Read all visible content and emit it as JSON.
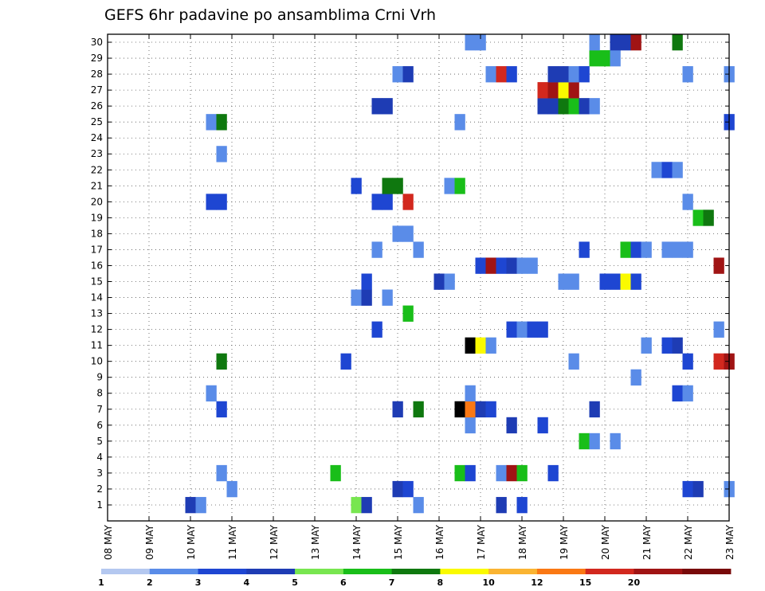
{
  "chart_data": {
    "type": "heatmap",
    "title": "GEFS 6hr padavine po ansamblima Crni Vrh",
    "xlabel": "",
    "ylabel": "",
    "x_tick_labels": [
      "08 MAY",
      "09 MAY",
      "10 MAY",
      "11 MAY",
      "12 MAY",
      "13 MAY",
      "14 MAY",
      "15 MAY",
      "16 MAY",
      "17 MAY",
      "18 MAY",
      "19 MAY",
      "20 MAY",
      "21 MAY",
      "22 MAY",
      "23 MAY"
    ],
    "y_tick_labels": [
      "1",
      "2",
      "3",
      "4",
      "5",
      "6",
      "7",
      "8",
      "9",
      "10",
      "11",
      "12",
      "13",
      "14",
      "15",
      "16",
      "17",
      "18",
      "19",
      "20",
      "21",
      "22",
      "23",
      "24",
      "25",
      "26",
      "27",
      "28",
      "29",
      "30"
    ],
    "x_unit": "6-hour step",
    "grid": "dotted",
    "legend": {
      "placement": "bottom",
      "labels": [
        "1",
        "2",
        "3",
        "4",
        "5",
        "6",
        "7",
        "8",
        "10",
        "12",
        "15",
        "20"
      ],
      "colors": [
        "#b4c8f0",
        "#5a8ce8",
        "#1e46d2",
        "#1e3cb4",
        "#78e650",
        "#19be19",
        "#0f780f",
        "#fafa00",
        "#fab432",
        "#fa7814",
        "#d2281e",
        "#a01414",
        "#780a0a"
      ]
    },
    "cells": [
      {
        "m": 1,
        "s": [
          [
            8,
            3
          ],
          [
            9,
            1
          ],
          [
            24,
            4
          ],
          [
            25,
            3
          ],
          [
            30,
            1
          ],
          [
            38,
            3
          ],
          [
            40,
            2
          ]
        ]
      },
      {
        "m": 2,
        "s": [
          [
            12,
            1
          ],
          [
            28,
            3
          ],
          [
            29,
            2
          ],
          [
            56,
            2
          ],
          [
            57,
            3
          ],
          [
            60,
            1
          ]
        ]
      },
      {
        "m": 3,
        "s": [
          [
            11,
            1
          ],
          [
            22,
            5
          ],
          [
            34,
            5
          ],
          [
            35,
            2
          ],
          [
            38,
            1
          ],
          [
            39,
            11
          ],
          [
            40,
            5
          ],
          [
            43,
            2
          ]
        ]
      },
      {
        "m": 5,
        "s": [
          [
            46,
            5
          ],
          [
            47,
            1
          ],
          [
            49,
            1
          ]
        ]
      },
      {
        "m": 6,
        "s": [
          [
            35,
            1
          ],
          [
            39,
            3
          ],
          [
            42,
            2
          ]
        ]
      },
      {
        "m": 7,
        "s": [
          [
            11,
            2
          ],
          [
            28,
            3
          ],
          [
            30,
            6
          ],
          [
            34,
            13
          ],
          [
            35,
            9
          ],
          [
            36,
            3
          ],
          [
            37,
            2
          ],
          [
            47,
            3
          ]
        ]
      },
      {
        "m": 8,
        "s": [
          [
            10,
            1
          ],
          [
            35,
            1
          ],
          [
            55,
            2
          ],
          [
            56,
            1
          ]
        ]
      },
      {
        "m": 9,
        "s": [
          [
            51,
            1
          ]
        ]
      },
      {
        "m": 10,
        "s": [
          [
            11,
            6
          ],
          [
            23,
            2
          ],
          [
            45,
            1
          ],
          [
            56,
            2
          ],
          [
            59,
            10
          ],
          [
            60,
            11
          ]
        ]
      },
      {
        "m": 11,
        "s": [
          [
            35,
            13
          ],
          [
            36,
            7
          ],
          [
            37,
            1
          ],
          [
            52,
            1
          ],
          [
            54,
            2
          ],
          [
            55,
            3
          ]
        ]
      },
      {
        "m": 12,
        "s": [
          [
            26,
            2
          ],
          [
            39,
            2
          ],
          [
            40,
            1
          ],
          [
            41,
            2
          ],
          [
            42,
            2
          ],
          [
            59,
            1
          ]
        ]
      },
      {
        "m": 13,
        "s": [
          [
            29,
            5
          ]
        ]
      },
      {
        "m": 14,
        "s": [
          [
            24,
            1
          ],
          [
            25,
            3
          ],
          [
            27,
            1
          ]
        ]
      },
      {
        "m": 15,
        "s": [
          [
            25,
            2
          ],
          [
            32,
            3
          ],
          [
            33,
            1
          ],
          [
            44,
            1
          ],
          [
            45,
            1
          ],
          [
            48,
            2
          ],
          [
            49,
            2
          ],
          [
            50,
            7
          ],
          [
            51,
            2
          ]
        ]
      },
      {
        "m": 16,
        "s": [
          [
            36,
            2
          ],
          [
            37,
            11
          ],
          [
            38,
            2
          ],
          [
            39,
            3
          ],
          [
            40,
            1
          ],
          [
            41,
            1
          ],
          [
            59,
            11
          ]
        ]
      },
      {
        "m": 17,
        "s": [
          [
            26,
            1
          ],
          [
            30,
            1
          ],
          [
            46,
            2
          ],
          [
            50,
            5
          ],
          [
            51,
            2
          ],
          [
            52,
            1
          ],
          [
            54,
            1
          ],
          [
            55,
            1
          ],
          [
            56,
            1
          ]
        ]
      },
      {
        "m": 18,
        "s": [
          [
            28,
            1
          ],
          [
            29,
            1
          ]
        ]
      },
      {
        "m": 19,
        "s": [
          [
            57,
            5
          ],
          [
            58,
            6
          ]
        ]
      },
      {
        "m": 20,
        "s": [
          [
            10,
            2
          ],
          [
            11,
            2
          ],
          [
            26,
            2
          ],
          [
            27,
            2
          ],
          [
            29,
            10
          ],
          [
            56,
            1
          ]
        ]
      },
      {
        "m": 21,
        "s": [
          [
            24,
            2
          ],
          [
            27,
            6
          ],
          [
            28,
            6
          ],
          [
            33,
            1
          ],
          [
            34,
            5
          ]
        ]
      },
      {
        "m": 22,
        "s": [
          [
            53,
            1
          ],
          [
            54,
            2
          ],
          [
            55,
            1
          ]
        ]
      },
      {
        "m": 23,
        "s": [
          [
            11,
            1
          ]
        ]
      },
      {
        "m": 24,
        "s": []
      },
      {
        "m": 25,
        "s": [
          [
            10,
            1
          ],
          [
            11,
            6
          ],
          [
            34,
            1
          ],
          [
            60,
            2
          ]
        ]
      },
      {
        "m": 26,
        "s": [
          [
            26,
            3
          ],
          [
            27,
            3
          ],
          [
            42,
            3
          ],
          [
            43,
            3
          ],
          [
            44,
            6
          ],
          [
            45,
            5
          ],
          [
            46,
            3
          ],
          [
            47,
            1
          ]
        ]
      },
      {
        "m": 27,
        "s": [
          [
            42,
            10
          ],
          [
            43,
            11
          ],
          [
            44,
            7
          ],
          [
            45,
            11
          ]
        ]
      },
      {
        "m": 28,
        "s": [
          [
            28,
            1
          ],
          [
            29,
            3
          ],
          [
            37,
            1
          ],
          [
            38,
            10
          ],
          [
            39,
            2
          ],
          [
            43,
            3
          ],
          [
            44,
            3
          ],
          [
            45,
            1
          ],
          [
            46,
            2
          ],
          [
            56,
            1
          ],
          [
            60,
            1
          ]
        ]
      },
      {
        "m": 29,
        "s": [
          [
            47,
            5
          ],
          [
            48,
            5
          ],
          [
            49,
            1
          ]
        ]
      },
      {
        "m": 30,
        "s": [
          [
            35,
            1
          ],
          [
            36,
            1
          ],
          [
            47,
            1
          ],
          [
            49,
            3
          ],
          [
            50,
            3
          ],
          [
            51,
            11
          ],
          [
            55,
            6
          ]
        ]
      }
    ]
  }
}
